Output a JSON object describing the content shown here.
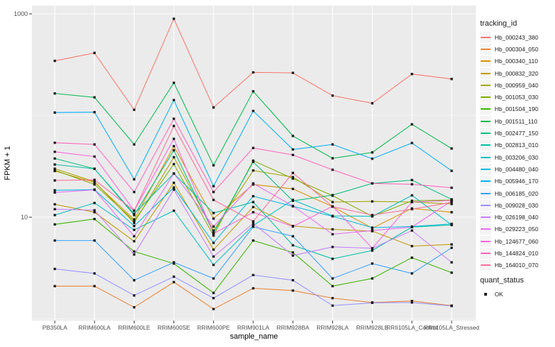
{
  "chart_data": {
    "type": "line",
    "title": "",
    "xlabel": "sample_name",
    "ylabel": "FPKM + 1",
    "y_scale": "log10",
    "ylim": [
      1,
      1200
    ],
    "grid": true,
    "legend_position": "right",
    "panel_bg": "#EBEBEB",
    "gridline_color": "#FFFFFF",
    "point_color": "#1a1a1a",
    "point_shape": "square",
    "y_major_ticks": [
      {
        "label": "1000",
        "value": 1000
      },
      {
        "label": "10",
        "value": 10
      }
    ],
    "y_minor_gridlines": [
      100,
      1
    ],
    "categories": [
      "PB350LA",
      "RRIM600LA",
      "RRIM600LE",
      "RRIM600SE",
      "RRIM600PE",
      "RRIM901LA",
      "RRIM928BA",
      "RRIM928LA",
      "RRIM928LE",
      "RRII105LA_Control",
      "RRII105LA_Stressed"
    ],
    "legend_title": "tracking_id",
    "series": [
      {
        "name": "Hb_000243_380",
        "color": "#F8766D",
        "values": [
          345,
          413,
          114,
          895,
          120,
          266,
          263,
          157,
          132,
          256,
          229
        ]
      },
      {
        "name": "Hb_000304_050",
        "color": "#EA8331",
        "values": [
          2.1,
          2.1,
          1.3,
          2.3,
          1.25,
          2.0,
          1.9,
          1.6,
          1.45,
          1.5,
          1.35
        ]
      },
      {
        "name": "Hb_000340_110",
        "color": "#D89000",
        "values": [
          28.5,
          22.0,
          9.5,
          50,
          9.7,
          21.0,
          19.0,
          12.7,
          7.8,
          12.2,
          11.2
        ]
      },
      {
        "name": "Hb_000832_320",
        "color": "#C09B00",
        "values": [
          13.4,
          11.2,
          5.8,
          21.8,
          4.8,
          12.6,
          8.2,
          7.6,
          7.3,
          5.2,
          5.4
        ]
      },
      {
        "name": "Hb_000959_040",
        "color": "#A3A500",
        "values": [
          30,
          22.4,
          8.8,
          38.9,
          7.4,
          28.8,
          24.8,
          14.1,
          14.3,
          14.1,
          13.5
        ]
      },
      {
        "name": "Hb_001053_030",
        "color": "#7CAE00",
        "values": [
          29,
          21,
          9.2,
          33.3,
          6.6,
          36,
          24,
          16.3,
          10.2,
          14.5,
          14.8
        ]
      },
      {
        "name": "Hb_001504_190",
        "color": "#39B600",
        "values": [
          8.5,
          9.6,
          4.6,
          3.5,
          1.8,
          5.9,
          4.5,
          2.1,
          2.5,
          4.0,
          2.85
        ]
      },
      {
        "name": "Hb_001511_110",
        "color": "#00BB4E",
        "values": [
          165,
          151,
          52,
          210,
          32.4,
          173,
          63,
          38,
          43.4,
          82,
          47.4
        ]
      },
      {
        "name": "Hb_002477_150",
        "color": "#00BF7D",
        "values": [
          37.8,
          30,
          10.5,
          45.5,
          7.0,
          35,
          14.5,
          16.5,
          21.5,
          23.2,
          15.0
        ]
      },
      {
        "name": "Hb_002813_010",
        "color": "#00C1A3",
        "values": [
          33,
          29.9,
          10.8,
          26.9,
          11.0,
          14.1,
          5.3,
          3.9,
          4.7,
          8.0,
          8.4
        ]
      },
      {
        "name": "Hb_003206_030",
        "color": "#00BFC4",
        "values": [
          10.5,
          13.8,
          7.5,
          11.6,
          3.4,
          8.3,
          14.8,
          10.3,
          10.2,
          16.4,
          8.4
        ]
      },
      {
        "name": "Hb_004480_040",
        "color": "#00BAE0",
        "values": [
          18.4,
          18.7,
          8.2,
          19.6,
          5.6,
          16.1,
          12.8,
          10.2,
          7.9,
          8.1,
          8.6
        ]
      },
      {
        "name": "Hb_005946_170",
        "color": "#00B0F6",
        "values": [
          107,
          108,
          23.6,
          142,
          20.2,
          111,
          46.4,
          52,
          37.6,
          53.7,
          28.6
        ]
      },
      {
        "name": "Hb_006185_020",
        "color": "#35A2FF",
        "values": [
          5.9,
          5.9,
          2.4,
          3.6,
          2.5,
          8.05,
          6.5,
          2.5,
          3.5,
          2.8,
          5.0
        ]
      },
      {
        "name": "Hb_009028_030",
        "color": "#9590FF",
        "values": [
          3.1,
          2.8,
          1.7,
          2.6,
          1.6,
          2.7,
          2.4,
          1.35,
          1.44,
          1.45,
          1.34
        ]
      },
      {
        "name": "Hb_026198_040",
        "color": "#C77CFF",
        "values": [
          12.0,
          11.7,
          4.3,
          18.7,
          4.1,
          8.7,
          4.2,
          5.1,
          4.95,
          7.4,
          3.6
        ]
      },
      {
        "name": "Hb_029223_050",
        "color": "#E76BF3",
        "values": [
          17.5,
          18.6,
          6.5,
          26.9,
          8.1,
          21.5,
          12.9,
          6.8,
          7.4,
          8.0,
          14.5
        ]
      },
      {
        "name": "Hb_124677_060",
        "color": "#FA62DB",
        "values": [
          44,
          39.5,
          11.6,
          59,
          6.9,
          11.2,
          8.1,
          12.8,
          4.95,
          14.1,
          14.6
        ]
      },
      {
        "name": "Hb_144824_010",
        "color": "#FF62BC",
        "values": [
          54,
          52,
          17.7,
          93,
          17.7,
          48,
          41,
          29.3,
          21.5,
          21.1,
          19.5
        ]
      },
      {
        "name": "Hb_164010_070",
        "color": "#FF6A98",
        "values": [
          23,
          23.3,
          11.6,
          79,
          14.8,
          9.1,
          27.3,
          12.7,
          10.5,
          12.0,
          14.0
        ]
      }
    ],
    "legend2_title": "quant_status",
    "legend2_items": [
      {
        "label": "OK",
        "marker": "square",
        "color": "#1a1a1a"
      }
    ]
  }
}
